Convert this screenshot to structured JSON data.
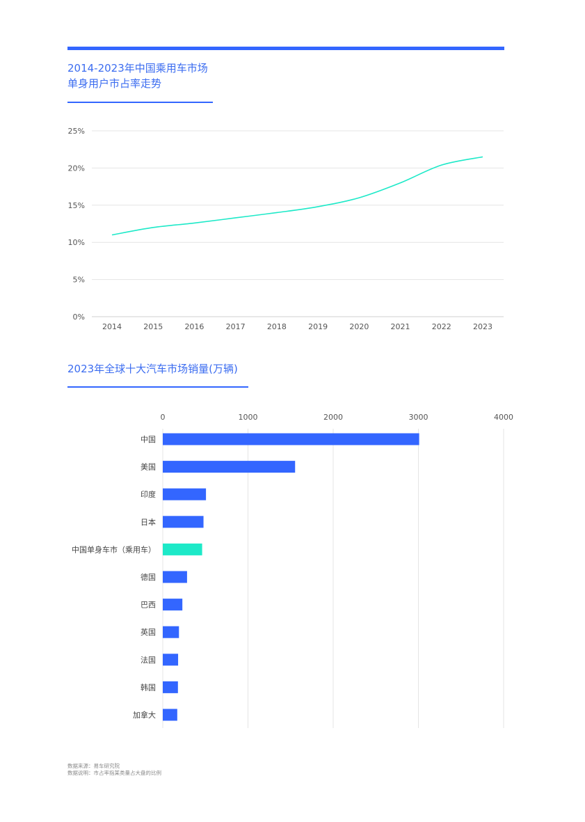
{
  "page": {
    "source_note": "数据来源：易车研究院",
    "method_note": "数据说明：市占率指某类量占大盘的比例"
  },
  "colors": {
    "accent": "#3366ff",
    "line": "#1de9c8",
    "highlight": "#1de9c8",
    "bar": "#3366ff",
    "grid": "#e4e4e4"
  },
  "chart_data": [
    {
      "type": "line",
      "title": "2014-2023年中国乘用车市场",
      "subtitle": "单身用户市占率走势",
      "x": [
        "2014",
        "2015",
        "2016",
        "2017",
        "2018",
        "2019",
        "2020",
        "2021",
        "2022",
        "2023"
      ],
      "series": [
        {
          "values": [
            11.0,
            12.0,
            12.6,
            13.3,
            14.0,
            14.8,
            16.0,
            18.0,
            20.4,
            21.5
          ]
        }
      ],
      "ylim": [
        0,
        25
      ],
      "yticks": [
        "0%",
        "5%",
        "10%",
        "15%",
        "20%",
        "25%"
      ],
      "ytick_values": [
        0,
        5,
        10,
        15,
        20,
        25
      ],
      "grid": true
    },
    {
      "type": "bar",
      "orientation": "horizontal",
      "title": "2023年全球十大汽车市场销量(万辆)",
      "categories": [
        "中国",
        "美国",
        "印度",
        "日本",
        "中国单身车市（乘用车）",
        "德国",
        "巴西",
        "英国",
        "法国",
        "韩国",
        "加拿大"
      ],
      "values": [
        3009,
        1553,
        507,
        478,
        462,
        285,
        230,
        190,
        180,
        178,
        170
      ],
      "highlight_index": 4,
      "xlim": [
        0,
        4000
      ],
      "xticks": [
        "0",
        "1000",
        "2000",
        "3000",
        "4000"
      ],
      "xtick_values": [
        0,
        1000,
        2000,
        3000,
        4000
      ],
      "grid": true
    }
  ]
}
